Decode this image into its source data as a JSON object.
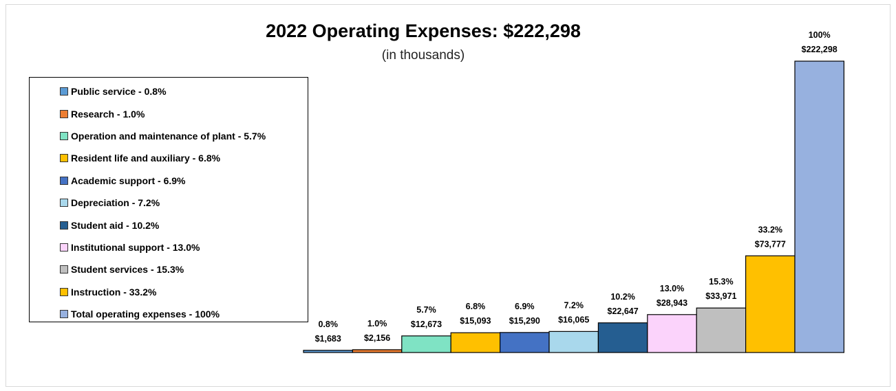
{
  "chart_data": {
    "type": "bar",
    "title": "2022 Operating Expenses: $222,298",
    "subtitle": "(in thousands)",
    "xlabel": "",
    "ylabel": "",
    "ylim": [
      0,
      222298
    ],
    "grid": false,
    "legend_position": "left",
    "categories": [
      "Public service - 0.8%",
      "Research - 1.0%",
      "Operation and maintenance of plant - 5.7%",
      "Resident life and auxiliary - 6.8%",
      "Academic support - 6.9%",
      "Depreciation - 7.2%",
      "Student aid - 10.2%",
      "Institutional support - 13.0%",
      "Student services - 15.3%",
      "Instruction - 33.2%",
      "Total operating expenses - 100%"
    ],
    "values": [
      1683,
      2156,
      12673,
      15093,
      15290,
      16065,
      22647,
      28943,
      33971,
      73777,
      222298
    ],
    "percent_labels": [
      "0.8%",
      "1.0%",
      "5.7%",
      "6.8%",
      "6.9%",
      "7.2%",
      "10.2%",
      "13.0%",
      "15.3%",
      "33.2%",
      "100%"
    ],
    "value_labels": [
      "$1,683",
      "$2,156",
      "$12,673",
      "$15,093",
      "$15,290",
      "$16,065",
      "$22,647",
      "$28,943",
      "$33,971",
      "$73,777",
      "$222,298"
    ],
    "colors": [
      "#5b9bd5",
      "#ed7d31",
      "#7fe3c4",
      "#ffc000",
      "#4472c4",
      "#a9d8ec",
      "#255e91",
      "#fbd3fb",
      "#bfbfbf",
      "#ffc000",
      "#97b1df"
    ]
  }
}
